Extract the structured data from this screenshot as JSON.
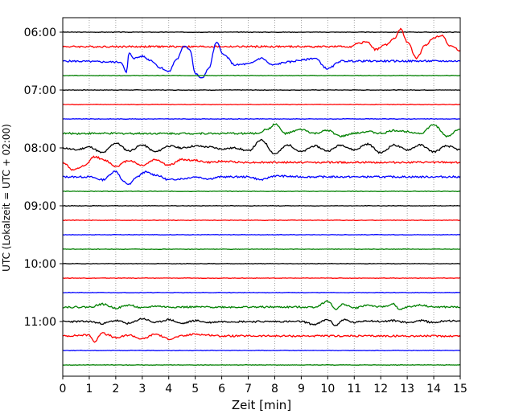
{
  "chart_data": {
    "type": "line",
    "title": "",
    "xlabel": "Zeit  [min]",
    "ylabel": "UTC (Lokalzeit = UTC + 02:00)",
    "xlim": [
      0,
      15
    ],
    "x_ticks": [
      0,
      1,
      2,
      3,
      4,
      5,
      6,
      7,
      8,
      9,
      10,
      11,
      12,
      13,
      14,
      15
    ],
    "y_ticks": [
      "06:00",
      "07:00",
      "08:00",
      "09:00",
      "10:00",
      "11:00"
    ],
    "grid": "vertical dotted",
    "trace_colors": [
      "#000000",
      "#ff0000",
      "#0000ff",
      "#008000"
    ],
    "traces": [
      {
        "time": "06:00",
        "color": "#000000",
        "points": [
          [
            0,
            0
          ]
        ]
      },
      {
        "time": "06:15",
        "color": "#ff0000",
        "points": [
          [
            0,
            0
          ],
          [
            10.9,
            0
          ],
          [
            11.1,
            0.3
          ],
          [
            11.5,
            0.5
          ],
          [
            11.8,
            -0.3
          ],
          [
            12.2,
            0.2
          ],
          [
            12.5,
            0.8
          ],
          [
            12.75,
            1.8
          ],
          [
            13.0,
            0.5
          ],
          [
            13.35,
            -1.2
          ],
          [
            13.7,
            0.2
          ],
          [
            14.0,
            0.9
          ],
          [
            14.3,
            1.2
          ],
          [
            14.6,
            0.1
          ],
          [
            15,
            -0.4
          ]
        ]
      },
      {
        "time": "06:30",
        "color": "#0000ff",
        "points": [
          [
            0,
            0
          ],
          [
            2.2,
            -0.1
          ],
          [
            2.4,
            -1.2
          ],
          [
            2.5,
            0.8
          ],
          [
            2.7,
            0.3
          ],
          [
            3.0,
            0.5
          ],
          [
            3.3,
            0.1
          ],
          [
            3.7,
            -0.7
          ],
          [
            4.0,
            -1.1
          ],
          [
            4.3,
            0.2
          ],
          [
            4.6,
            1.6
          ],
          [
            4.8,
            1.2
          ],
          [
            5.0,
            -1.3
          ],
          [
            5.25,
            -1.8
          ],
          [
            5.5,
            -0.8
          ],
          [
            5.8,
            1.9
          ],
          [
            6.1,
            0.6
          ],
          [
            6.5,
            -0.4
          ],
          [
            7.0,
            -0.3
          ],
          [
            7.5,
            0.3
          ],
          [
            7.9,
            -0.4
          ],
          [
            8.5,
            -0.1
          ],
          [
            9.0,
            0.1
          ],
          [
            9.5,
            0.3
          ],
          [
            10.0,
            -0.8
          ],
          [
            10.5,
            0
          ],
          [
            15,
            0
          ]
        ]
      },
      {
        "time": "06:45",
        "color": "#008000",
        "points": [
          [
            0,
            0
          ],
          [
            15,
            0
          ]
        ]
      },
      {
        "time": "07:00",
        "color": "#000000",
        "points": [
          [
            0,
            0
          ],
          [
            15,
            0
          ]
        ]
      },
      {
        "time": "07:15",
        "color": "#ff0000",
        "points": [
          [
            0,
            0
          ],
          [
            15,
            0
          ]
        ]
      },
      {
        "time": "07:30",
        "color": "#0000ff",
        "points": [
          [
            0,
            0
          ],
          [
            15,
            0
          ]
        ]
      },
      {
        "time": "07:45",
        "color": "#008000",
        "points": [
          [
            0,
            0
          ],
          [
            7.3,
            0
          ],
          [
            7.8,
            0.5
          ],
          [
            8.0,
            1.0
          ],
          [
            8.4,
            0
          ],
          [
            9.0,
            0.4
          ],
          [
            9.5,
            0
          ],
          [
            10.0,
            0.3
          ],
          [
            10.5,
            -0.3
          ],
          [
            11.0,
            0
          ],
          [
            11.5,
            0.2
          ],
          [
            12.0,
            0
          ],
          [
            12.5,
            0.3
          ],
          [
            13.0,
            0.2
          ],
          [
            13.5,
            0
          ],
          [
            14.0,
            0.9
          ],
          [
            14.5,
            -0.3
          ],
          [
            15,
            0.5
          ]
        ]
      },
      {
        "time": "08:00",
        "color": "#000000",
        "points": [
          [
            0,
            0
          ],
          [
            0.5,
            -0.2
          ],
          [
            1.0,
            0.1
          ],
          [
            1.5,
            -0.5
          ],
          [
            2.0,
            0.5
          ],
          [
            2.5,
            -0.3
          ],
          [
            3.0,
            0.3
          ],
          [
            3.5,
            -0.4
          ],
          [
            4.0,
            0.2
          ],
          [
            4.5,
            0
          ],
          [
            5.0,
            0.2
          ],
          [
            5.5,
            0.1
          ],
          [
            6.0,
            -0.1
          ],
          [
            6.5,
            0
          ],
          [
            7.0,
            -0.3
          ],
          [
            7.5,
            0.8
          ],
          [
            8.0,
            -0.6
          ],
          [
            8.5,
            0.3
          ],
          [
            9.0,
            -0.4
          ],
          [
            9.5,
            0.2
          ],
          [
            10.0,
            -0.3
          ],
          [
            10.5,
            0.3
          ],
          [
            11.0,
            -0.2
          ],
          [
            11.5,
            0.4
          ],
          [
            12.0,
            -0.5
          ],
          [
            12.5,
            0.3
          ],
          [
            13.0,
            -0.2
          ],
          [
            13.5,
            0.3
          ],
          [
            14.0,
            -0.4
          ],
          [
            14.5,
            0.2
          ],
          [
            15,
            -0.2
          ]
        ]
      },
      {
        "time": "08:15",
        "color": "#ff0000",
        "points": [
          [
            0,
            0
          ],
          [
            0.4,
            -0.8
          ],
          [
            0.8,
            -0.4
          ],
          [
            1.2,
            0.6
          ],
          [
            1.6,
            0.2
          ],
          [
            2.0,
            -0.4
          ],
          [
            2.5,
            0.2
          ],
          [
            3.0,
            -0.3
          ],
          [
            3.5,
            0.3
          ],
          [
            4.0,
            -0.3
          ],
          [
            4.5,
            0.3
          ],
          [
            5.0,
            0.2
          ],
          [
            5.5,
            0
          ],
          [
            6.0,
            0.1
          ],
          [
            7.0,
            0
          ],
          [
            15,
            0
          ]
        ]
      },
      {
        "time": "08:30",
        "color": "#0000ff",
        "points": [
          [
            0,
            0
          ],
          [
            1.0,
            0
          ],
          [
            1.5,
            -0.3
          ],
          [
            2.0,
            0.6
          ],
          [
            2.3,
            -0.5
          ],
          [
            2.5,
            -0.8
          ],
          [
            2.8,
            0
          ],
          [
            3.1,
            0.5
          ],
          [
            3.5,
            0.2
          ],
          [
            4.0,
            -0.3
          ],
          [
            4.5,
            -0.2
          ],
          [
            5.0,
            0
          ],
          [
            5.5,
            -0.2
          ],
          [
            6.0,
            0
          ],
          [
            7.0,
            0
          ],
          [
            7.5,
            -0.3
          ],
          [
            8.0,
            0.1
          ],
          [
            9.0,
            0
          ],
          [
            15,
            0
          ]
        ]
      },
      {
        "time": "08:45",
        "color": "#008000",
        "points": [
          [
            0,
            0
          ],
          [
            15,
            0
          ]
        ]
      },
      {
        "time": "09:00",
        "color": "#000000",
        "points": [
          [
            0,
            0
          ],
          [
            15,
            0
          ]
        ]
      },
      {
        "time": "09:15",
        "color": "#ff0000",
        "points": [
          [
            0,
            0
          ],
          [
            15,
            0
          ]
        ]
      },
      {
        "time": "09:30",
        "color": "#0000ff",
        "points": [
          [
            0,
            0
          ],
          [
            15,
            0
          ]
        ]
      },
      {
        "time": "09:45",
        "color": "#008000",
        "points": [
          [
            0,
            0
          ],
          [
            15,
            0
          ]
        ]
      },
      {
        "time": "10:00",
        "color": "#000000",
        "points": [
          [
            0,
            0
          ],
          [
            15,
            0
          ]
        ]
      },
      {
        "time": "10:15",
        "color": "#ff0000",
        "points": [
          [
            0,
            0
          ],
          [
            15,
            0
          ]
        ]
      },
      {
        "time": "10:30",
        "color": "#0000ff",
        "points": [
          [
            0,
            0
          ],
          [
            15,
            0
          ]
        ]
      },
      {
        "time": "10:45",
        "color": "#008000",
        "points": [
          [
            0,
            0
          ],
          [
            1.0,
            0
          ],
          [
            1.5,
            0.3
          ],
          [
            2.0,
            -0.1
          ],
          [
            2.5,
            0.2
          ],
          [
            3.0,
            -0.1
          ],
          [
            3.5,
            0.1
          ],
          [
            4.0,
            0
          ],
          [
            5.0,
            0
          ],
          [
            6.0,
            0
          ],
          [
            9.5,
            0
          ],
          [
            10.0,
            0.6
          ],
          [
            10.3,
            -0.2
          ],
          [
            10.6,
            0.3
          ],
          [
            11.0,
            -0.1
          ],
          [
            11.5,
            0.2
          ],
          [
            12.0,
            0
          ],
          [
            12.5,
            0.3
          ],
          [
            12.7,
            -0.3
          ],
          [
            13.0,
            0
          ],
          [
            13.5,
            0.2
          ],
          [
            14.0,
            0
          ],
          [
            15,
            0
          ]
        ]
      },
      {
        "time": "11:00",
        "color": "#000000",
        "points": [
          [
            0,
            0
          ],
          [
            1.0,
            0
          ],
          [
            1.5,
            -0.2
          ],
          [
            2.0,
            0.1
          ],
          [
            2.5,
            -0.2
          ],
          [
            3.0,
            0.3
          ],
          [
            3.5,
            -0.1
          ],
          [
            4.0,
            0.2
          ],
          [
            4.5,
            -0.2
          ],
          [
            5.0,
            0.1
          ],
          [
            5.5,
            -0.1
          ],
          [
            6.0,
            0
          ],
          [
            7.0,
            0
          ],
          [
            8.0,
            0
          ],
          [
            9.0,
            0
          ],
          [
            9.5,
            -0.3
          ],
          [
            10.0,
            0.2
          ],
          [
            10.3,
            -0.4
          ],
          [
            10.6,
            0.2
          ],
          [
            11.0,
            -0.1
          ],
          [
            11.5,
            0.1
          ],
          [
            12.0,
            0
          ],
          [
            12.5,
            0.1
          ],
          [
            13.0,
            -0.1
          ],
          [
            13.5,
            0.1
          ],
          [
            14.0,
            -0.1
          ],
          [
            14.5,
            0.1
          ],
          [
            15,
            0
          ]
        ]
      },
      {
        "time": "11:15",
        "color": "#ff0000",
        "points": [
          [
            0,
            0
          ],
          [
            1.0,
            0.1
          ],
          [
            1.2,
            -0.6
          ],
          [
            1.5,
            0.4
          ],
          [
            1.7,
            0.1
          ],
          [
            2.0,
            -0.2
          ],
          [
            2.5,
            0.1
          ],
          [
            3.0,
            -0.3
          ],
          [
            3.5,
            0.2
          ],
          [
            4.0,
            -0.3
          ],
          [
            4.5,
            0
          ],
          [
            5.0,
            0.2
          ],
          [
            5.5,
            0.1
          ],
          [
            6.0,
            0
          ],
          [
            15,
            0
          ]
        ]
      },
      {
        "time": "11:30",
        "color": "#0000ff",
        "points": [
          [
            0,
            0
          ],
          [
            15,
            0
          ]
        ]
      },
      {
        "time": "11:45",
        "color": "#008000",
        "points": [
          [
            0,
            0
          ],
          [
            15,
            0
          ]
        ]
      }
    ]
  }
}
